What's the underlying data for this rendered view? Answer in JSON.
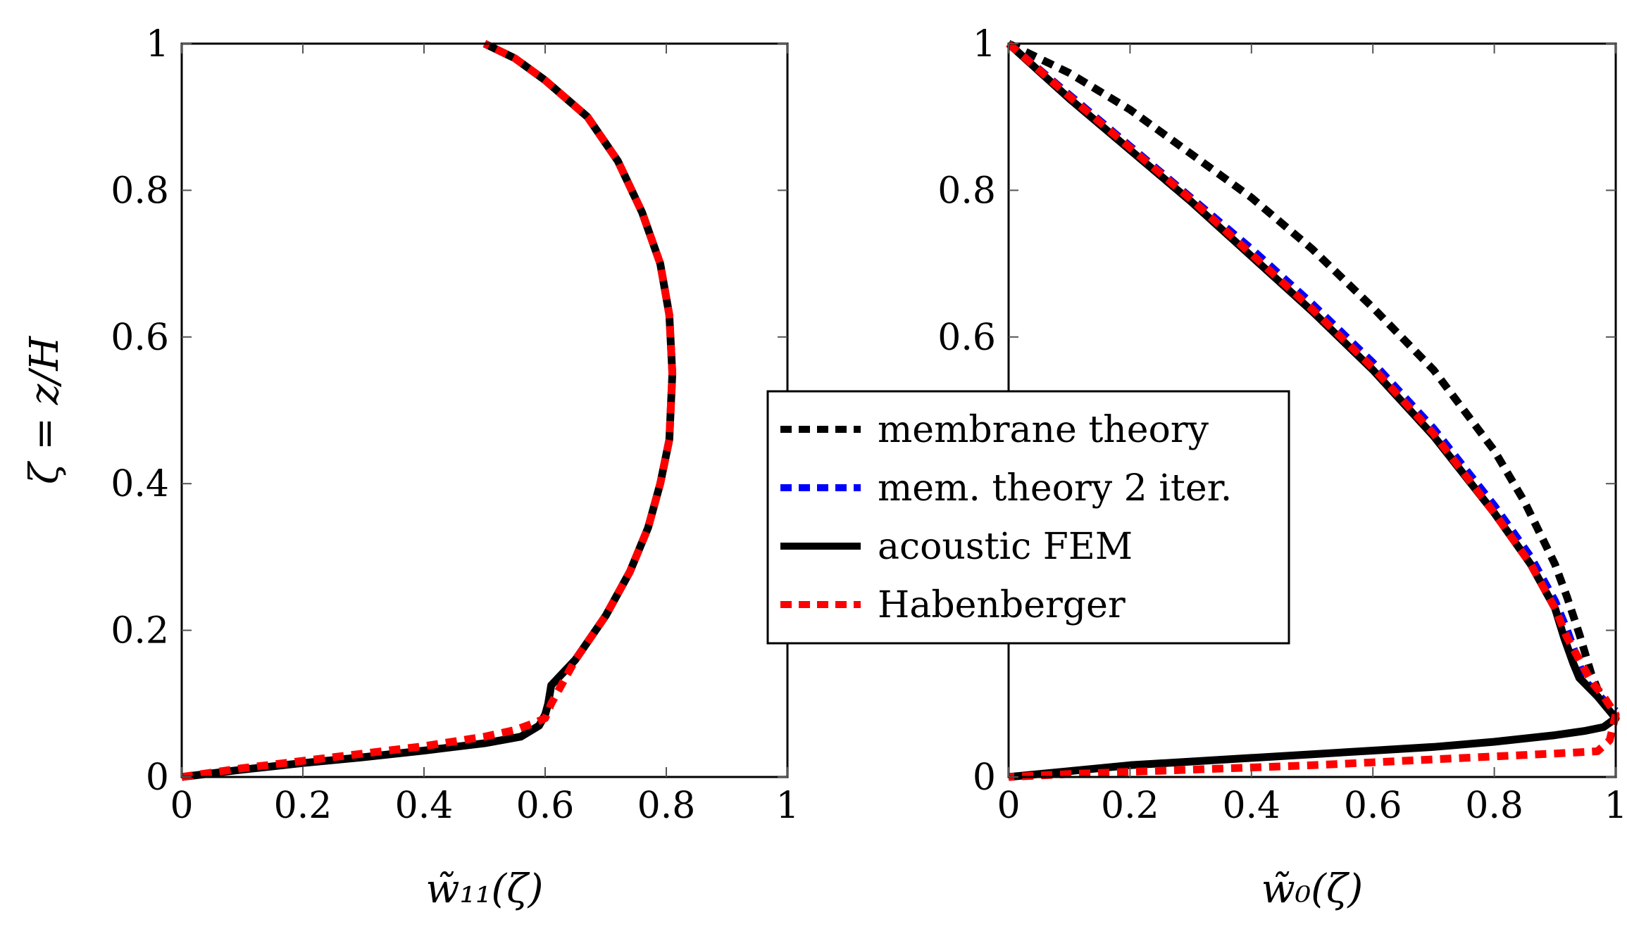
{
  "colors": {
    "membrane": "#000000",
    "mem2": "#0000ff",
    "fem": "#000000",
    "habenberger": "#ff0000"
  },
  "legend": {
    "items": [
      {
        "label": "membrane theory",
        "series": "membrane"
      },
      {
        "label": "mem. theory 2 iter.",
        "series": "mem2"
      },
      {
        "label": "acoustic FEM",
        "series": "fem"
      },
      {
        "label": "Habenberger",
        "series": "habenberger"
      }
    ]
  },
  "chart_data": [
    {
      "type": "line",
      "id": "left",
      "xlabel": "w̃₁₁(ζ)",
      "ylabel": "ζ = z/H",
      "xlim": [
        0,
        1
      ],
      "ylim": [
        0,
        1
      ],
      "xticks": [
        "0",
        "0.2",
        "0.4",
        "0.6",
        "0.8",
        "1"
      ],
      "yticks": [
        "0",
        "0.2",
        "0.4",
        "0.6",
        "0.8",
        "1"
      ],
      "series": [
        {
          "name": "acoustic FEM",
          "key": "fem",
          "x": [
            0,
            0.1,
            0.2,
            0.3,
            0.4,
            0.5,
            0.56,
            0.59,
            0.6,
            0.605,
            0.61,
            0.65,
            0.7,
            0.74,
            0.77,
            0.79,
            0.805,
            0.81,
            0.805,
            0.79,
            0.76,
            0.72,
            0.67,
            0.6,
            0.55,
            0.5
          ],
          "y": [
            0,
            0.01,
            0.019,
            0.027,
            0.036,
            0.046,
            0.055,
            0.07,
            0.085,
            0.1,
            0.125,
            0.16,
            0.22,
            0.28,
            0.34,
            0.4,
            0.46,
            0.55,
            0.63,
            0.7,
            0.77,
            0.84,
            0.9,
            0.95,
            0.98,
            1.0
          ]
        },
        {
          "name": "Habenberger",
          "key": "habenberger",
          "x": [
            0,
            0.1,
            0.2,
            0.3,
            0.4,
            0.5,
            0.55,
            0.58,
            0.6,
            0.61,
            0.65,
            0.7,
            0.74,
            0.77,
            0.79,
            0.805,
            0.81,
            0.805,
            0.79,
            0.76,
            0.72,
            0.67,
            0.6,
            0.55,
            0.5
          ],
          "y": [
            0,
            0.012,
            0.022,
            0.032,
            0.042,
            0.055,
            0.064,
            0.073,
            0.08,
            0.1,
            0.16,
            0.22,
            0.28,
            0.34,
            0.4,
            0.46,
            0.55,
            0.63,
            0.7,
            0.77,
            0.84,
            0.9,
            0.95,
            0.98,
            1.0
          ]
        }
      ]
    },
    {
      "type": "line",
      "id": "right",
      "xlabel": "w̃₀(ζ)",
      "ylabel": "",
      "xlim": [
        0,
        1
      ],
      "ylim": [
        0,
        1
      ],
      "xticks": [
        "0",
        "0.2",
        "0.4",
        "0.6",
        "0.8",
        "1"
      ],
      "yticks": [
        "0",
        "0.2",
        "0.4",
        "0.6",
        "0.8",
        "1"
      ],
      "series": [
        {
          "name": "membrane theory",
          "key": "membrane",
          "x": [
            0,
            0.1,
            0.2,
            0.3,
            0.4,
            0.5,
            0.6,
            0.7,
            0.8,
            0.85,
            0.9,
            0.92,
            0.94,
            0.96,
            0.98,
            1.0
          ],
          "y": [
            1.0,
            0.96,
            0.91,
            0.85,
            0.79,
            0.72,
            0.64,
            0.555,
            0.445,
            0.375,
            0.29,
            0.245,
            0.195,
            0.14,
            0.1,
            0.08
          ]
        },
        {
          "name": "mem. theory 2 iter.",
          "key": "mem2",
          "x": [
            0,
            0.1,
            0.2,
            0.3,
            0.4,
            0.5,
            0.6,
            0.7,
            0.8,
            0.86,
            0.9,
            0.92,
            0.935,
            0.95,
            0.98,
            1.0
          ],
          "y": [
            1.0,
            0.93,
            0.86,
            0.79,
            0.72,
            0.645,
            0.565,
            0.475,
            0.37,
            0.3,
            0.24,
            0.2,
            0.165,
            0.13,
            0.105,
            0.09
          ]
        },
        {
          "name": "acoustic FEM",
          "key": "fem",
          "x": [
            0,
            0.1,
            0.2,
            0.3,
            0.4,
            0.5,
            0.6,
            0.7,
            0.8,
            0.86,
            0.9,
            0.915,
            0.93,
            0.94,
            0.97,
            1.0,
            0.98,
            0.95,
            0.9,
            0.8,
            0.7,
            0.6,
            0.5,
            0.4,
            0.3,
            0.2,
            0.1,
            0
          ],
          "y": [
            1.0,
            0.925,
            0.855,
            0.785,
            0.71,
            0.635,
            0.555,
            0.465,
            0.36,
            0.29,
            0.23,
            0.19,
            0.155,
            0.135,
            0.11,
            0.08,
            0.068,
            0.063,
            0.057,
            0.048,
            0.041,
            0.036,
            0.031,
            0.026,
            0.021,
            0.016,
            0.008,
            0.0
          ]
        },
        {
          "name": "Habenberger",
          "key": "habenberger",
          "x": [
            0,
            0.1,
            0.2,
            0.3,
            0.4,
            0.5,
            0.6,
            0.7,
            0.8,
            0.86,
            0.9,
            0.92,
            0.94,
            0.96,
            0.98,
            1.0,
            0.99,
            0.97,
            0.9,
            0.8,
            0.7,
            0.6,
            0.5,
            0.4,
            0.3,
            0.2,
            0.1,
            0
          ],
          "y": [
            1.0,
            0.928,
            0.858,
            0.788,
            0.713,
            0.638,
            0.558,
            0.468,
            0.36,
            0.29,
            0.23,
            0.19,
            0.16,
            0.13,
            0.11,
            0.085,
            0.05,
            0.035,
            0.032,
            0.028,
            0.024,
            0.02,
            0.016,
            0.013,
            0.01,
            0.007,
            0.004,
            0.0
          ]
        }
      ]
    }
  ]
}
